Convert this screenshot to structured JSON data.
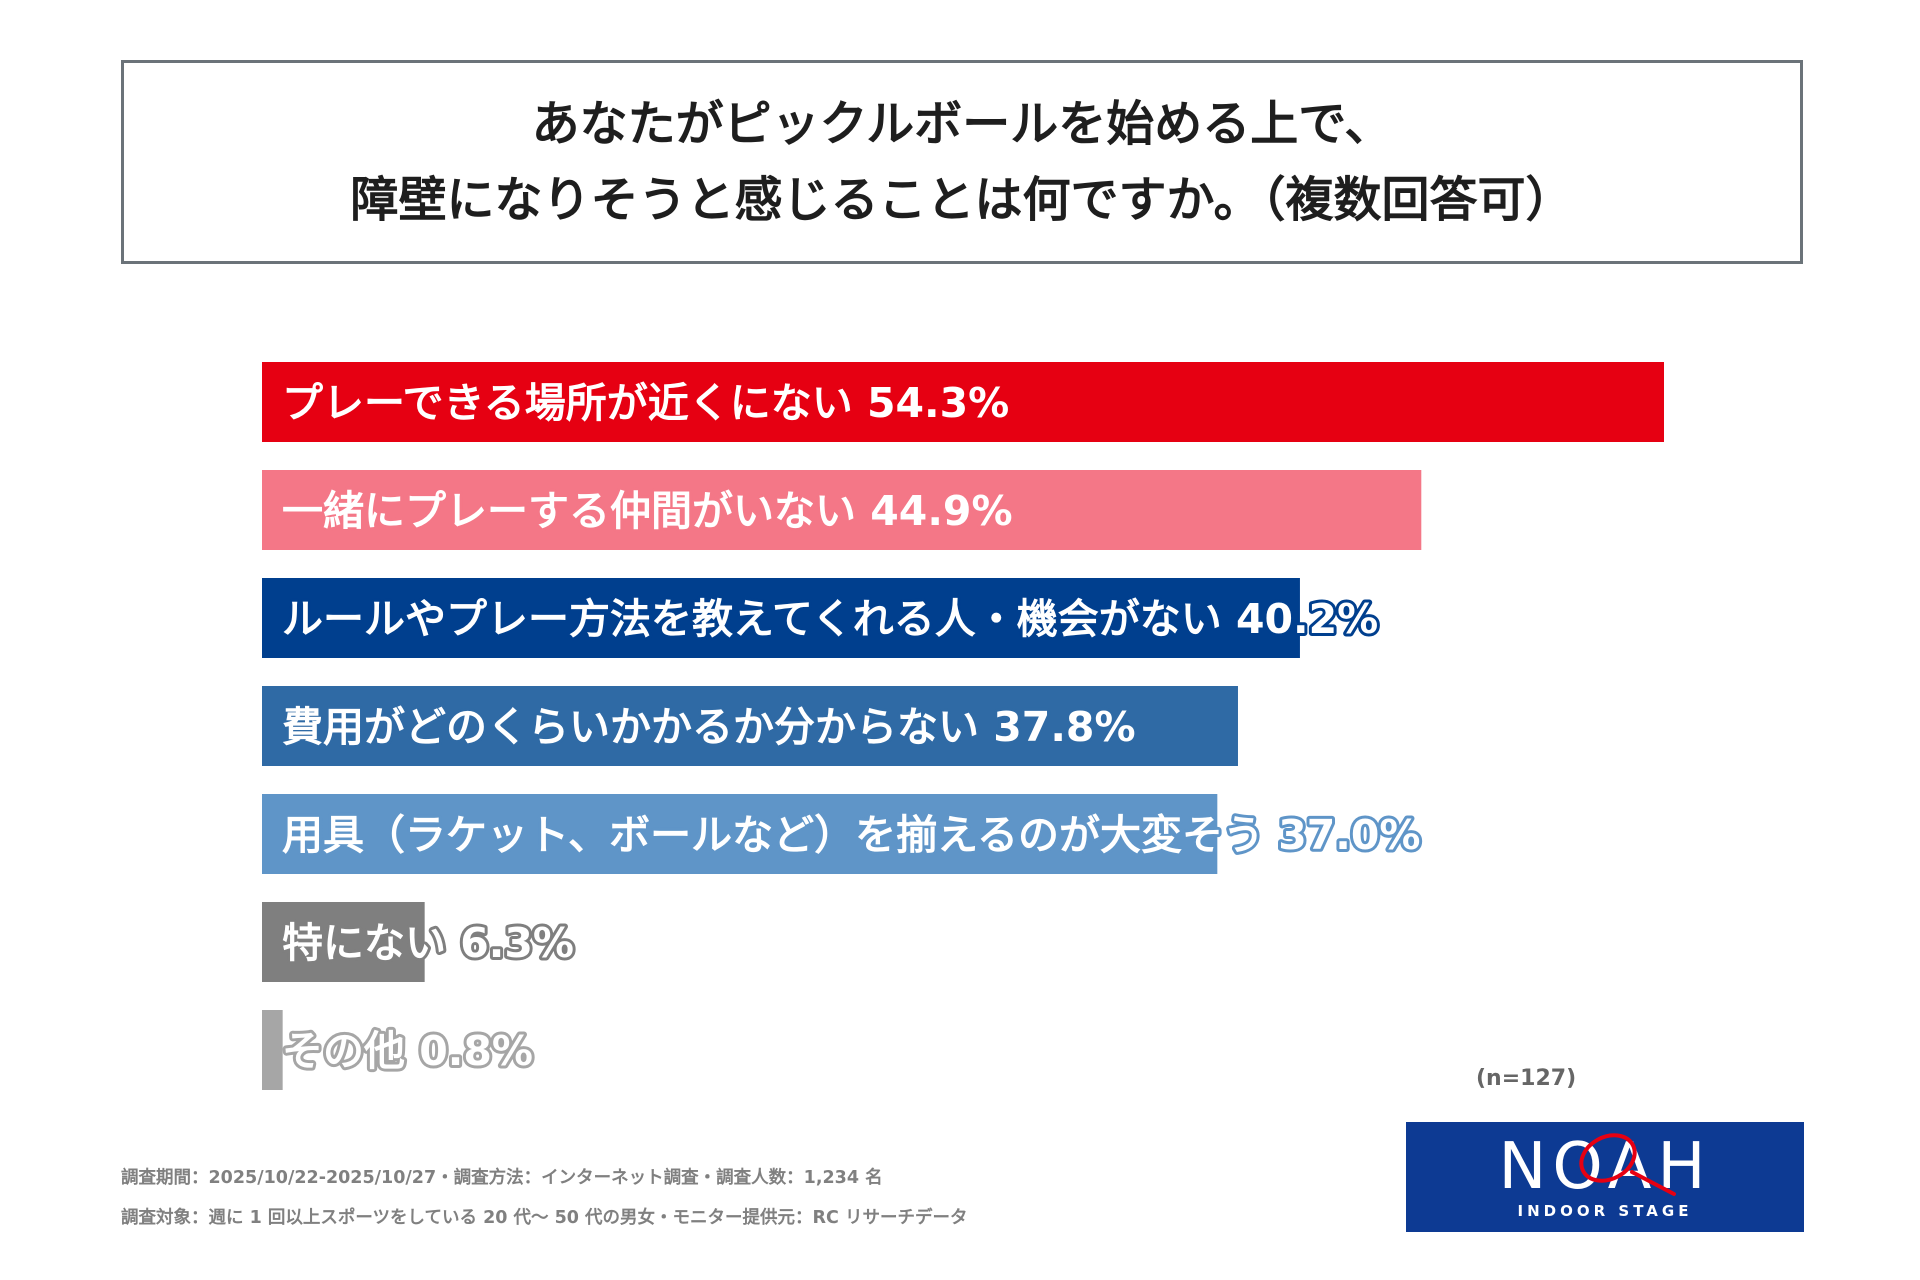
{
  "title": {
    "line1": "あなたがピックルボールを始める上で、",
    "line2": "障壁になりそうと感じることは何ですか。（複数回答可）"
  },
  "chart_data": {
    "type": "bar",
    "orientation": "horizontal",
    "unit": "%",
    "xlim": [
      0,
      60
    ],
    "grid": false,
    "legend": "none",
    "categories": [
      "プレーできる場所が近くにない",
      "一緒にプレーする仲間がいない",
      "ルールやプレー方法を教えてくれる人・機会がない",
      "費用がどのくらいかかるか分からない",
      "用具（ラケット、ボールなど）を揃えるのが大変そう",
      "特にない",
      "その他"
    ],
    "values": [
      54.3,
      44.9,
      40.2,
      37.8,
      37.0,
      6.3,
      0.8
    ],
    "value_labels": [
      "54.3%",
      "44.9%",
      "40.2%",
      "37.8%",
      "37.0%",
      "6.3%",
      "0.8%"
    ],
    "colors": [
      "#e60012",
      "#f47787",
      "#003f8e",
      "#2f6aa5",
      "#5f95c8",
      "#7f7f7f",
      "#a6a6a6"
    ],
    "sample_size": "(n=127)"
  },
  "footnote": {
    "line1": "調査期間：2025/10/22-2025/10/27・調査方法：インターネット調査・調査人数：1,234 名",
    "line2": "調査対象：週に 1 回以上スポーツをしている 20 代〜 50 代の男女・モニター提供元：RC リサーチデータ"
  },
  "logo": {
    "word": "NOAH",
    "sub": "INDOOR STAGE",
    "icon": "racket-icon",
    "background": "#0d3a93"
  }
}
